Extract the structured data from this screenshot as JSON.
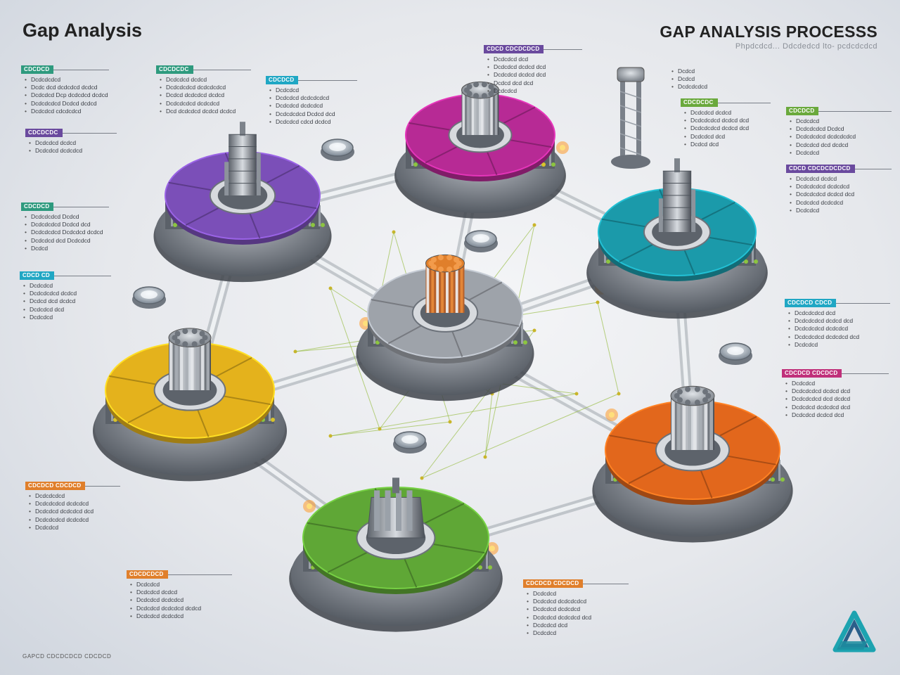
{
  "header": {
    "title": "Gap Analysis",
    "right_title": "GAP ANALYSIS PROCESSS",
    "right_subtitle": "Phpdcdcd... Ddcdedcd lto- pcdcdcdcd"
  },
  "footer": {
    "note": "GAPCD CDCDCDCD CDCDCD"
  },
  "colors": {
    "purple": "#7b4fb8",
    "magenta": "#b72a95",
    "teal": "#1b9aaa",
    "gray": "#9ea3aa",
    "yellow": "#e4b21c",
    "orange": "#e2671c",
    "green": "#5fa736",
    "tag_green": "#2e9a7e",
    "tag_cyan": "#20a7c4",
    "tag_purple": "#6a4a9e",
    "tag_lime": "#6aa93c",
    "tag_orange": "#e07f2b",
    "tag_pink": "#c0307a"
  },
  "nodes": [
    {
      "id": "purple",
      "color_key": "purple",
      "icon": "tower-icon"
    },
    {
      "id": "magenta",
      "color_key": "magenta",
      "icon": "hub-icon"
    },
    {
      "id": "teal",
      "color_key": "teal",
      "icon": "tower-icon"
    },
    {
      "id": "center",
      "color_key": "gray",
      "icon": "hub-icon"
    },
    {
      "id": "yellow",
      "color_key": "yellow",
      "icon": "hub-icon"
    },
    {
      "id": "orange",
      "color_key": "orange",
      "icon": "hub-icon"
    },
    {
      "id": "green",
      "color_key": "green",
      "icon": "machine-icon"
    }
  ],
  "labels": [
    {
      "tag": "CDCDCD",
      "color": "#2e9a7e",
      "items": [
        "Dcdcdcdcd",
        "Dcdc dcd dcdcdcd dcdcd",
        "Dcdcdcd Dcp dcdcdcd dcdcd",
        "Dcdcdcdcd Dcdcd dcdcd",
        "Dcdcdcd cdcdcdcd"
      ]
    },
    {
      "tag": "CDCDCDC",
      "color": "#2e9a7e",
      "items": [
        "Dcdcdcd dcdcd",
        "Dcdcdcdcd dcdcdcdcd",
        "Dcdcd dcdcdcd dcdcd",
        "Dcdcdcdcd dcdcdcd",
        "Dcd dcdcdcd dcdcd dcdcd"
      ]
    },
    {
      "tag": "CDCDCD",
      "color": "#20a7c4",
      "items": [
        "Dcdcdcd",
        "Dcdcdcd dcdcdcdcd",
        "Dcdcdcd dcdcdcd",
        "Dcdcdcdcd Dcdcd dcd",
        "Dcdcdcd cdcd dcdcd"
      ]
    },
    {
      "tag": "CDCDCDC",
      "color": "#6a4a9e",
      "items": [
        "Dcdcdcd dcdcd",
        "Dcdcdcd dcdcdcd"
      ]
    },
    {
      "tag": "CDCDCD",
      "color": "#2e9a7e",
      "items": [
        "Dcdcdcdcd Dcdcd",
        "Dcdcdcdcd Dcdcd dcd",
        "Dcdcdcdcd Dcdcdcd dcdcd",
        "Dcdcdcd dcd Dcdcdcd",
        "Dcdcd"
      ]
    },
    {
      "tag": "CDCDCDC",
      "color": "#6aa93c",
      "items": [
        "Dcdcdcd dcdcd",
        "Dcdcdcdcd dcdcd dcd",
        "Dcdcdcdcd dcdcd dcd",
        "Dcdcdcd dcd",
        "Dcdcd dcd"
      ]
    },
    {
      "tag": "CDCDCD",
      "color": "#6aa93c",
      "items": [
        "Dcdcdcd",
        "Dcdcdcdcd Dcdcd",
        "Dcdcdcdcd dcdcdcdcd",
        "Dcdcdcd dcd dcdcd",
        "Dcdcdcd"
      ]
    },
    {
      "tag": "CDCD CDCDCDCD",
      "color": "#6a4a9e",
      "items": [
        "Dcdcdcd dcd",
        "Dcdcdcd dcdcd dcd",
        "Dcdcdcd dcdcd dcd",
        "Dcdcd dcd dcd",
        "Dcdcdcd"
      ]
    },
    {
      "tag": "CDCD CDCDCDCDCD",
      "color": "#6a4a9e",
      "items": [
        "Dcdcdcd dcdcd",
        "Dcdcdcdcd dcdcdcd",
        "Dcdcdcdcd dcdcd dcd",
        "Dcdcdcd dcdcdcd",
        "Dcdcdcd"
      ]
    },
    {
      "tag": "CDCD CD",
      "color": "#20a7c4",
      "items": [
        "Dcdcdcd",
        "Dcdcdcdcd dcdcd",
        "Dcdcd dcd dcdcd",
        "Dcdcdcd dcd",
        "Dcdcdcd"
      ]
    },
    {
      "tag": "CDCDCD CDCD",
      "color": "#20a7c4",
      "items": [
        "Dcdcdcdcd dcd",
        "Dcdcdcdcd dcdcd dcd",
        "Dcdcdcdcd dcdcdcd",
        "Dcdcdcdcd dcdcdcd dcd",
        "Dcdcdcd"
      ]
    },
    {
      "tag": "CDCDCD CDCDCD",
      "color": "#c0307a",
      "items": [
        "Dcdcdcd",
        "Dcdcdcdcd dcdcd dcd",
        "Dcdcdcdcd dcd dcdcd",
        "Dcdcdcd dcdcdcd dcd",
        "Dcdcdcd dcdcd dcd"
      ]
    },
    {
      "tag": "CDCDCD CDCDCD",
      "color": "#e07f2b",
      "items": [
        "Dcdcdcdcd",
        "Dcdcdcdcd dcdcdcd",
        "Dcdcdcd dcdcdcd dcd",
        "Dcdcdcdcd dcdcdcd",
        "Dcdcdcd"
      ]
    },
    {
      "tag": "CDCDCDCD",
      "color": "#e07f2b",
      "items": [
        "Dcdcdcd",
        "Dcdcdcd dcdcd",
        "Dcdcdcd dcdcdcd",
        "Dcdcdcd dcdcdcd dcdcd",
        "Dcdcdcd dcdcdcd"
      ]
    },
    {
      "tag": "CDCDCD CDCDCD",
      "color": "#e07f2b",
      "items": [
        "Dcdcdcd",
        "Dcdcdcd dcdcdcdcd",
        "Dcdcdcd dcdcdcd",
        "Dcdcdcd dcdcdcd dcd",
        "Dcdcdcd dcd",
        "Dcdcdcd"
      ]
    },
    {
      "tag": "",
      "color": "#7a7f88",
      "items": [
        "Dcdcd",
        "Dcdcd",
        "Dcdcdcdcd"
      ]
    }
  ]
}
